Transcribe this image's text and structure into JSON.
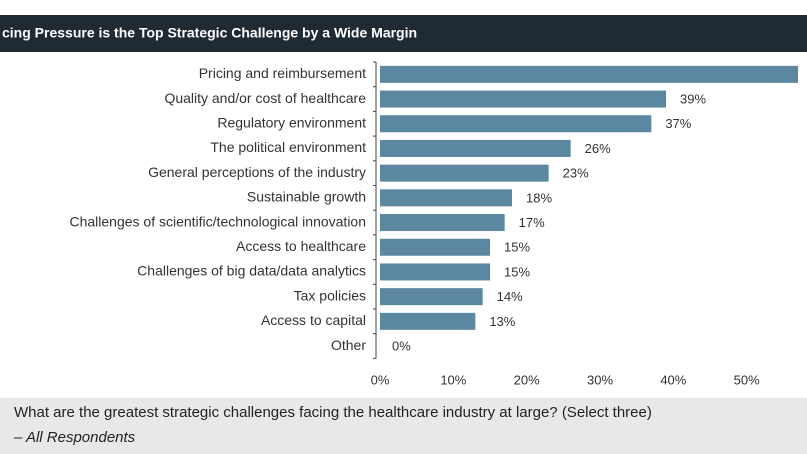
{
  "chart_data": {
    "type": "hbar",
    "title": "cing Pressure is the Top Strategic Challenge by a Wide Margin",
    "categories": [
      "Pricing and reimbursement",
      "Quality and/or cost of healthcare",
      "Regulatory environment",
      "The political environment",
      "General perceptions of the industry",
      "Sustainable growth",
      "Challenges of scientific/technological innovation",
      "Access to healthcare",
      "Challenges of big data/data analytics",
      "Tax policies",
      "Access to capital",
      "Other"
    ],
    "values": [
      57,
      39,
      37,
      26,
      23,
      18,
      17,
      15,
      15,
      14,
      13,
      0
    ],
    "value_labels": [
      null,
      "39%",
      "37%",
      "26%",
      "23%",
      "18%",
      "17%",
      "15%",
      "15%",
      "14%",
      "13%",
      "0%"
    ],
    "color": "#5b87a1",
    "xlim": [
      0,
      60
    ],
    "xticks": [
      {
        "value": 0,
        "label": "0%"
      },
      {
        "value": 10,
        "label": "10%"
      },
      {
        "value": 20,
        "label": "20%"
      },
      {
        "value": 30,
        "label": "30%"
      },
      {
        "value": 40,
        "label": "40%"
      },
      {
        "value": 50,
        "label": "50%"
      }
    ],
    "question": "What are the greatest strategic challenges facing the healthcare industry at large? (Select three)",
    "respondents": "– All Respondents"
  }
}
